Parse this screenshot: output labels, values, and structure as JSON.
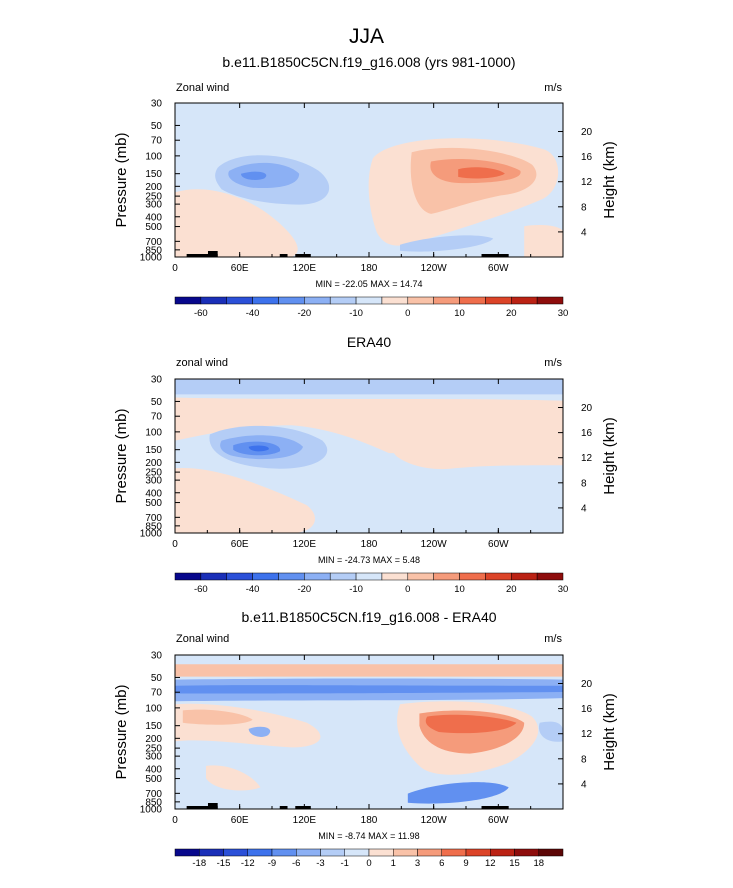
{
  "figure": {
    "title": "JJA"
  },
  "chart_data": [
    {
      "type": "heatmap",
      "title": "b.e11.B1850C5CN.f19_g16.008 (yrs 981-1000)",
      "left_label": "Zonal wind",
      "units": "m/s",
      "ylabel": "Pressure (mb)",
      "ylabel_right": "Height (km)",
      "x_ticks": [
        "0",
        "60E",
        "120E",
        "180",
        "120W",
        "60W"
      ],
      "y_ticks": [
        "30",
        "50",
        "70",
        "100",
        "150",
        "200",
        "250",
        "300",
        "400",
        "500",
        "700",
        "850",
        "1000"
      ],
      "y_ticks_right": [
        "20",
        "16",
        "12",
        "8",
        "4"
      ],
      "stats": "MIN = -22.05  MAX =  14.74",
      "colorbar_labels": [
        "-60",
        "-40",
        "-20",
        "-10",
        "0",
        "10",
        "20",
        "30"
      ]
    },
    {
      "type": "heatmap",
      "title": "ERA40",
      "left_label": "zonal wind",
      "units": "m/s",
      "ylabel": "Pressure (mb)",
      "ylabel_right": "Height (km)",
      "x_ticks": [
        "0",
        "60E",
        "120E",
        "180",
        "120W",
        "60W"
      ],
      "y_ticks": [
        "30",
        "50",
        "70",
        "100",
        "150",
        "200",
        "250",
        "300",
        "400",
        "500",
        "700",
        "850",
        "1000"
      ],
      "y_ticks_right": [
        "20",
        "16",
        "12",
        "8",
        "4"
      ],
      "stats": "MIN = -24.73  MAX =   5.48",
      "colorbar_labels": [
        "-60",
        "-40",
        "-20",
        "-10",
        "0",
        "10",
        "20",
        "30"
      ]
    },
    {
      "type": "heatmap",
      "title": "b.e11.B1850C5CN.f19_g16.008 - ERA40",
      "left_label": "Zonal wind",
      "units": "m/s",
      "ylabel": "Pressure (mb)",
      "ylabel_right": "Height (km)",
      "x_ticks": [
        "0",
        "60E",
        "120E",
        "180",
        "120W",
        "60W"
      ],
      "y_ticks": [
        "30",
        "50",
        "70",
        "100",
        "150",
        "200",
        "250",
        "300",
        "400",
        "500",
        "700",
        "850",
        "1000"
      ],
      "y_ticks_right": [
        "20",
        "16",
        "12",
        "8",
        "4"
      ],
      "stats": "MIN =  -8.74  MAX =  11.98",
      "colorbar_labels": [
        "-18",
        "-15",
        "-12",
        "-9",
        "-6",
        "-3",
        "-1",
        "0",
        "1",
        "3",
        "6",
        "9",
        "12",
        "15",
        "18"
      ]
    }
  ],
  "colors": {
    "cb_abs": [
      "#08088c",
      "#1a2fb8",
      "#2b50d8",
      "#3d72ec",
      "#6190f0",
      "#8cb0f4",
      "#b4cdf6",
      "#d6e6f9",
      "#fbe0d2",
      "#f9c2a8",
      "#f59b7b",
      "#ef6e4c",
      "#dc4428",
      "#bb2214",
      "#8e0d0c"
    ],
    "cb_diff": [
      "#08088c",
      "#1a2fb8",
      "#2b50d8",
      "#3d72ec",
      "#6190f0",
      "#8cb0f4",
      "#b4cdf6",
      "#d6e6f9",
      "#fbe0d2",
      "#f9c2a8",
      "#f59b7b",
      "#ef6e4c",
      "#dc4428",
      "#bb2214",
      "#8e0d0c",
      "#5c0606"
    ],
    "light_blue": "#d6e6f9",
    "light_orange": "#fbe0d2",
    "orange": "#f9c2a8"
  }
}
